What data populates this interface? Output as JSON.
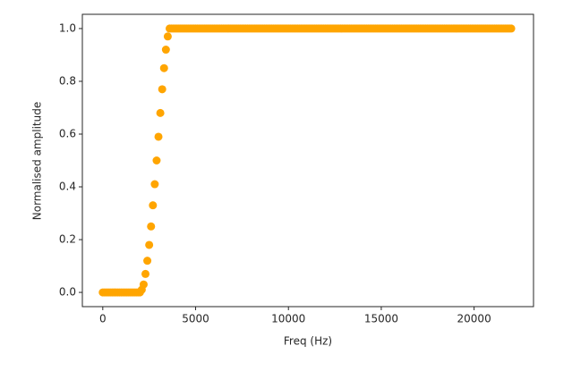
{
  "chart_data": {
    "type": "scatter",
    "xlabel": "Freq (Hz)",
    "ylabel": "Normalised amplitude",
    "color": "#ffa500",
    "xlim": [
      -1100,
      23200
    ],
    "ylim": [
      -0.054,
      1.054
    ],
    "xticks": [
      0,
      5000,
      10000,
      15000,
      20000
    ],
    "yticks": [
      {
        "value": 0,
        "label": "0.0"
      },
      0.2,
      0.4,
      0.6,
      0.8,
      {
        "value": 1,
        "label": "1.0"
      }
    ],
    "x": [
      0,
      100,
      200,
      300,
      400,
      500,
      600,
      700,
      800,
      900,
      1000,
      1100,
      1200,
      1300,
      1400,
      1500,
      1600,
      1700,
      1800,
      1900,
      2000,
      2100,
      2200,
      2300,
      2400,
      2500,
      2600,
      2700,
      2800,
      2900,
      3000,
      3100,
      3200,
      3300,
      3400,
      3500,
      3600,
      3700,
      3800,
      3900,
      4000,
      4100,
      4200,
      4300,
      4400,
      4500,
      4600,
      4700,
      4800,
      4900,
      5000,
      5100,
      5200,
      5300,
      5400,
      5500,
      5600,
      5700,
      5800,
      5900,
      6000,
      6100,
      6200,
      6300,
      6400,
      6500,
      6600,
      6700,
      6800,
      6900,
      7000,
      7100,
      7200,
      7300,
      7400,
      7500,
      7600,
      7700,
      7800,
      7900,
      8000,
      8100,
      8200,
      8300,
      8400,
      8500,
      8600,
      8700,
      8800,
      8900,
      9000,
      9100,
      9200,
      9300,
      9400,
      9500,
      9600,
      9700,
      9800,
      9900,
      10000,
      10100,
      10200,
      10300,
      10400,
      10500,
      10600,
      10700,
      10800,
      10900,
      11000,
      11100,
      11200,
      11300,
      11400,
      11500,
      11600,
      11700,
      11800,
      11900,
      12000,
      12100,
      12200,
      12300,
      12400,
      12500,
      12600,
      12700,
      12800,
      12900,
      13000,
      13100,
      13200,
      13300,
      13400,
      13500,
      13600,
      13700,
      13800,
      13900,
      14000,
      14100,
      14200,
      14300,
      14400,
      14500,
      14600,
      14700,
      14800,
      14900,
      15000,
      15100,
      15200,
      15300,
      15400,
      15500,
      15600,
      15700,
      15800,
      15900,
      16000,
      16100,
      16200,
      16300,
      16400,
      16500,
      16600,
      16700,
      16800,
      16900,
      17000,
      17100,
      17200,
      17300,
      17400,
      17500,
      17600,
      17700,
      17800,
      17900,
      18000,
      18100,
      18200,
      18300,
      18400,
      18500,
      18600,
      18700,
      18800,
      18900,
      19000,
      19100,
      19200,
      19300,
      19400,
      19500,
      19600,
      19700,
      19800,
      19900,
      20000,
      20100,
      20200,
      20300,
      20400,
      20500,
      20600,
      20700,
      20800,
      20900,
      21000,
      21100,
      21200,
      21300,
      21400,
      21500,
      21600,
      21700,
      21800,
      21900,
      22000
    ],
    "values": [
      0,
      0,
      0,
      0,
      0,
      0,
      0,
      0,
      0,
      0,
      0,
      0,
      0,
      0,
      0,
      0,
      0,
      0,
      0,
      0,
      0,
      0.01,
      0.03,
      0.07,
      0.12,
      0.18,
      0.25,
      0.33,
      0.41,
      0.5,
      0.59,
      0.68,
      0.77,
      0.85,
      0.92,
      0.97,
      1,
      1,
      1,
      1,
      1,
      1,
      1,
      1,
      1,
      1,
      1,
      1,
      1,
      1,
      1,
      1,
      1,
      1,
      1,
      1,
      1,
      1,
      1,
      1,
      1,
      1,
      1,
      1,
      1,
      1,
      1,
      1,
      1,
      1,
      1,
      1,
      1,
      1,
      1,
      1,
      1,
      1,
      1,
      1,
      1,
      1,
      1,
      1,
      1,
      1,
      1,
      1,
      1,
      1,
      1,
      1,
      1,
      1,
      1,
      1,
      1,
      1,
      1,
      1,
      1,
      1,
      1,
      1,
      1,
      1,
      1,
      1,
      1,
      1,
      1,
      1,
      1,
      1,
      1,
      1,
      1,
      1,
      1,
      1,
      1,
      1,
      1,
      1,
      1,
      1,
      1,
      1,
      1,
      1,
      1,
      1,
      1,
      1,
      1,
      1,
      1,
      1,
      1,
      1,
      1,
      1,
      1,
      1,
      1,
      1,
      1,
      1,
      1,
      1,
      1,
      1,
      1,
      1,
      1,
      1,
      1,
      1,
      1,
      1,
      1,
      1,
      1,
      1,
      1,
      1,
      1,
      1,
      1,
      1,
      1,
      1,
      1,
      1,
      1,
      1,
      1,
      1,
      1,
      1,
      1,
      1,
      1,
      1,
      1,
      1,
      1,
      1,
      1,
      1,
      1,
      1,
      1,
      1,
      1,
      1,
      1,
      1,
      1,
      1,
      1,
      1,
      1,
      1,
      1,
      1,
      1,
      1,
      1,
      1,
      1,
      1,
      1,
      1,
      1,
      1,
      1,
      1,
      1,
      1,
      1
    ]
  }
}
